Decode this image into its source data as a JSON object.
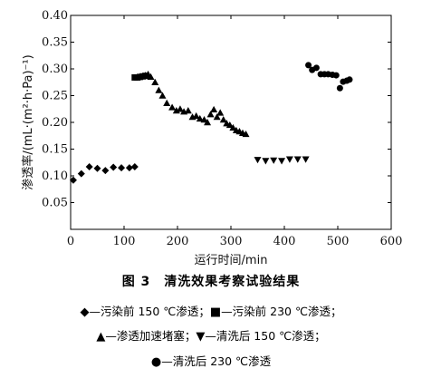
{
  "chart_data": {
    "type": "scatter",
    "xlabel": "运行时间/min",
    "ylabel": "渗透率/(mL·(m²·h·Pa)⁻¹)",
    "xlim": [
      0,
      600
    ],
    "ylim": [
      0,
      0.4
    ],
    "x_ticks": [
      "0",
      "100",
      "200",
      "300",
      "400",
      "500",
      "600"
    ],
    "y_ticks": [
      "0.05",
      "0.10",
      "0.15",
      "0.20",
      "0.25",
      "0.30",
      "0.35",
      "0.40"
    ],
    "grid": false,
    "series": [
      {
        "name": "污染前 150 ℃渗透",
        "marker": "diamond",
        "points": [
          [
            5,
            0.092
          ],
          [
            20,
            0.104
          ],
          [
            35,
            0.117
          ],
          [
            50,
            0.114
          ],
          [
            65,
            0.11
          ],
          [
            80,
            0.116
          ],
          [
            95,
            0.115
          ],
          [
            110,
            0.115
          ],
          [
            120,
            0.117
          ]
        ]
      },
      {
        "name": "污染前 230 ℃渗透",
        "marker": "square",
        "points": [
          [
            120,
            0.284
          ],
          [
            125,
            0.284
          ],
          [
            130,
            0.285
          ],
          [
            135,
            0.286
          ],
          [
            140,
            0.287
          ]
        ]
      },
      {
        "name": "渗透加速堵塞",
        "marker": "triangle-up",
        "points": [
          [
            140,
            0.288
          ],
          [
            145,
            0.29
          ],
          [
            150,
            0.285
          ],
          [
            158,
            0.275
          ],
          [
            165,
            0.26
          ],
          [
            172,
            0.25
          ],
          [
            180,
            0.236
          ],
          [
            190,
            0.228
          ],
          [
            198,
            0.222
          ],
          [
            205,
            0.225
          ],
          [
            212,
            0.22
          ],
          [
            220,
            0.222
          ],
          [
            228,
            0.21
          ],
          [
            235,
            0.212
          ],
          [
            242,
            0.207
          ],
          [
            250,
            0.205
          ],
          [
            256,
            0.2
          ],
          [
            262,
            0.215
          ],
          [
            268,
            0.224
          ],
          [
            274,
            0.21
          ],
          [
            280,
            0.218
          ],
          [
            286,
            0.205
          ],
          [
            292,
            0.198
          ],
          [
            298,
            0.195
          ],
          [
            304,
            0.19
          ],
          [
            310,
            0.185
          ],
          [
            316,
            0.183
          ],
          [
            322,
            0.18
          ],
          [
            328,
            0.178
          ]
        ]
      },
      {
        "name": "清洗后 150 ℃渗透",
        "marker": "triangle-down",
        "points": [
          [
            350,
            0.13
          ],
          [
            365,
            0.128
          ],
          [
            380,
            0.129
          ],
          [
            395,
            0.128
          ],
          [
            410,
            0.131
          ],
          [
            425,
            0.131
          ],
          [
            440,
            0.131
          ]
        ]
      },
      {
        "name": "清洗后 230 ℃渗透",
        "marker": "circle",
        "points": [
          [
            445,
            0.307
          ],
          [
            452,
            0.298
          ],
          [
            460,
            0.302
          ],
          [
            468,
            0.29
          ],
          [
            475,
            0.29
          ],
          [
            482,
            0.29
          ],
          [
            490,
            0.289
          ],
          [
            497,
            0.288
          ],
          [
            504,
            0.264
          ],
          [
            510,
            0.276
          ],
          [
            517,
            0.278
          ],
          [
            522,
            0.28
          ]
        ]
      }
    ]
  },
  "caption": {
    "figure_title": "图 3　清洗效果考察试验结果"
  },
  "legend_text": {
    "s1": "—污染前 150 ℃渗透；",
    "s2": "—污染前 230 ℃渗透；",
    "s3": "—渗透加速堵塞；",
    "s4": "—清洗后 150 ℃渗透；",
    "s5": "—清洗后 230 ℃渗透"
  },
  "legend_glyphs": {
    "diamond": "◆",
    "square": "■",
    "triangle_up": "▲",
    "triangle_down": "▼",
    "circle": "●"
  }
}
